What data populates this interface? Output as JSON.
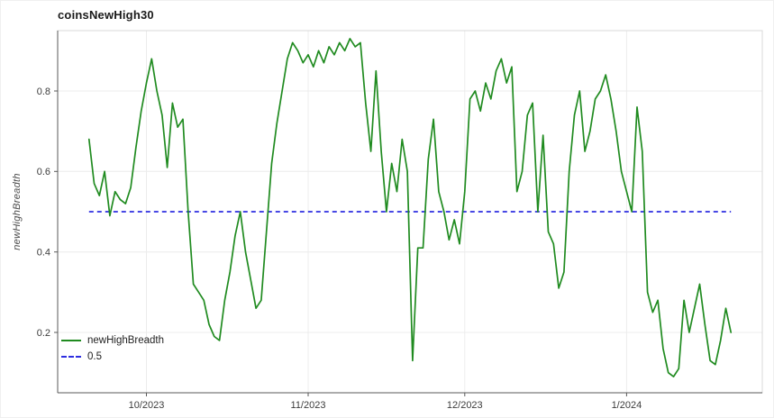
{
  "chart_data": {
    "type": "line",
    "title": "coinsNewHigh30",
    "xlabel": "",
    "ylabel": "newHighBreadth",
    "x_start_date": "2023-09-20",
    "x_interval": "daily",
    "x_domain": [
      "2023-09-14",
      "2024-01-27"
    ],
    "ylim": [
      0.05,
      0.95
    ],
    "grid": true,
    "legend_position": "lower-left",
    "y_ticks": [
      0.2,
      0.4,
      0.6,
      0.8
    ],
    "x_ticks": [
      {
        "label": "10/2023",
        "date": "2023-10-01"
      },
      {
        "label": "11/2023",
        "date": "2023-11-01"
      },
      {
        "label": "12/2023",
        "date": "2023-12-01"
      },
      {
        "label": "1/2024",
        "date": "2024-01-01"
      }
    ],
    "colors": {
      "series": "#208b20",
      "threshold": "#2e2ee0",
      "grid": "#ececec",
      "box": "#d9d9d9",
      "axis": "#595959",
      "text": "#3c3c3c"
    },
    "series": [
      {
        "name": "newHighBreadth",
        "style": "solid",
        "color": "#208b20",
        "values": [
          0.68,
          0.57,
          0.54,
          0.6,
          0.49,
          0.55,
          0.53,
          0.52,
          0.56,
          0.66,
          0.75,
          0.82,
          0.88,
          0.8,
          0.74,
          0.61,
          0.77,
          0.71,
          0.73,
          0.5,
          0.32,
          0.3,
          0.28,
          0.22,
          0.19,
          0.18,
          0.28,
          0.35,
          0.44,
          0.5,
          0.4,
          0.33,
          0.26,
          0.28,
          0.45,
          0.62,
          0.72,
          0.8,
          0.88,
          0.92,
          0.9,
          0.87,
          0.89,
          0.86,
          0.9,
          0.87,
          0.91,
          0.89,
          0.92,
          0.9,
          0.93,
          0.91,
          0.92,
          0.77,
          0.65,
          0.85,
          0.65,
          0.5,
          0.62,
          0.55,
          0.68,
          0.6,
          0.13,
          0.41,
          0.41,
          0.63,
          0.73,
          0.55,
          0.5,
          0.43,
          0.48,
          0.42,
          0.55,
          0.78,
          0.8,
          0.75,
          0.82,
          0.78,
          0.85,
          0.88,
          0.82,
          0.86,
          0.55,
          0.6,
          0.74,
          0.77,
          0.5,
          0.69,
          0.45,
          0.42,
          0.31,
          0.35,
          0.6,
          0.74,
          0.8,
          0.65,
          0.7,
          0.78,
          0.8,
          0.84,
          0.78,
          0.7,
          0.6,
          0.55,
          0.5,
          0.76,
          0.65,
          0.3,
          0.25,
          0.28,
          0.16,
          0.1,
          0.09,
          0.11,
          0.28,
          0.2,
          0.26,
          0.32,
          0.22,
          0.13,
          0.12,
          0.18,
          0.26,
          0.2
        ]
      },
      {
        "name": "0.5",
        "style": "dashed",
        "color": "#2e2ee0",
        "threshold": 0.5
      }
    ]
  }
}
